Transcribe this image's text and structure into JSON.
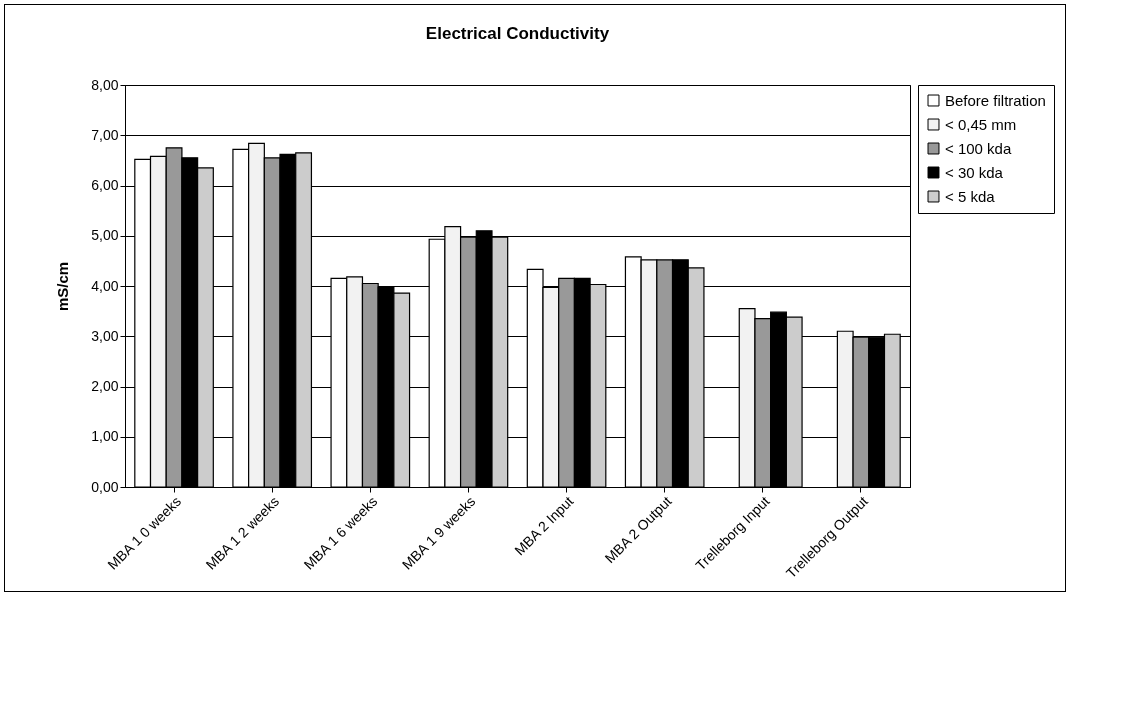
{
  "chart_data": {
    "type": "bar",
    "title": "Electrical Conductivity",
    "ylabel": "mS/cm",
    "categories": [
      "MBA 1 0 weeks",
      "MBA 1 2 weeks",
      "MBA 1 6 weeks",
      "MBA 1 9 weeks",
      "MBA 2 Input",
      "MBA 2 Output",
      "Trelleborg Input",
      "Trelleborg Output"
    ],
    "series": [
      {
        "name": "Before filtration",
        "color": "#ffffff",
        "values": [
          6.52,
          6.72,
          4.15,
          4.93,
          4.33,
          4.58,
          null,
          null
        ]
      },
      {
        "name": "< 0,45 mm",
        "color": "#f2f2f2",
        "values": [
          6.58,
          6.84,
          4.18,
          5.18,
          3.97,
          4.52,
          3.55,
          3.1
        ]
      },
      {
        "name": "< 100 kda",
        "color": "#999999",
        "values": [
          6.75,
          6.55,
          4.05,
          4.97,
          4.15,
          4.52,
          3.35,
          2.98
        ]
      },
      {
        "name": "< 30 kda",
        "color": "#000000",
        "values": [
          6.55,
          6.62,
          3.98,
          5.1,
          4.15,
          4.52,
          3.48,
          2.98
        ]
      },
      {
        "name": "< 5 kda",
        "color": "#cccccc",
        "values": [
          6.35,
          6.65,
          3.86,
          4.97,
          4.03,
          4.36,
          3.38,
          3.04
        ]
      }
    ],
    "ylim": [
      0,
      8
    ],
    "yticks": [
      {
        "value": 0,
        "label": "0,00"
      },
      {
        "value": 1,
        "label": "1,00"
      },
      {
        "value": 2,
        "label": "2,00"
      },
      {
        "value": 3,
        "label": "3,00"
      },
      {
        "value": 4,
        "label": "4,00"
      },
      {
        "value": 5,
        "label": "5,00"
      },
      {
        "value": 6,
        "label": "6,00"
      },
      {
        "value": 7,
        "label": "7,00"
      },
      {
        "value": 8,
        "label": "8,00"
      }
    ],
    "grid": "y",
    "legend": "right"
  }
}
